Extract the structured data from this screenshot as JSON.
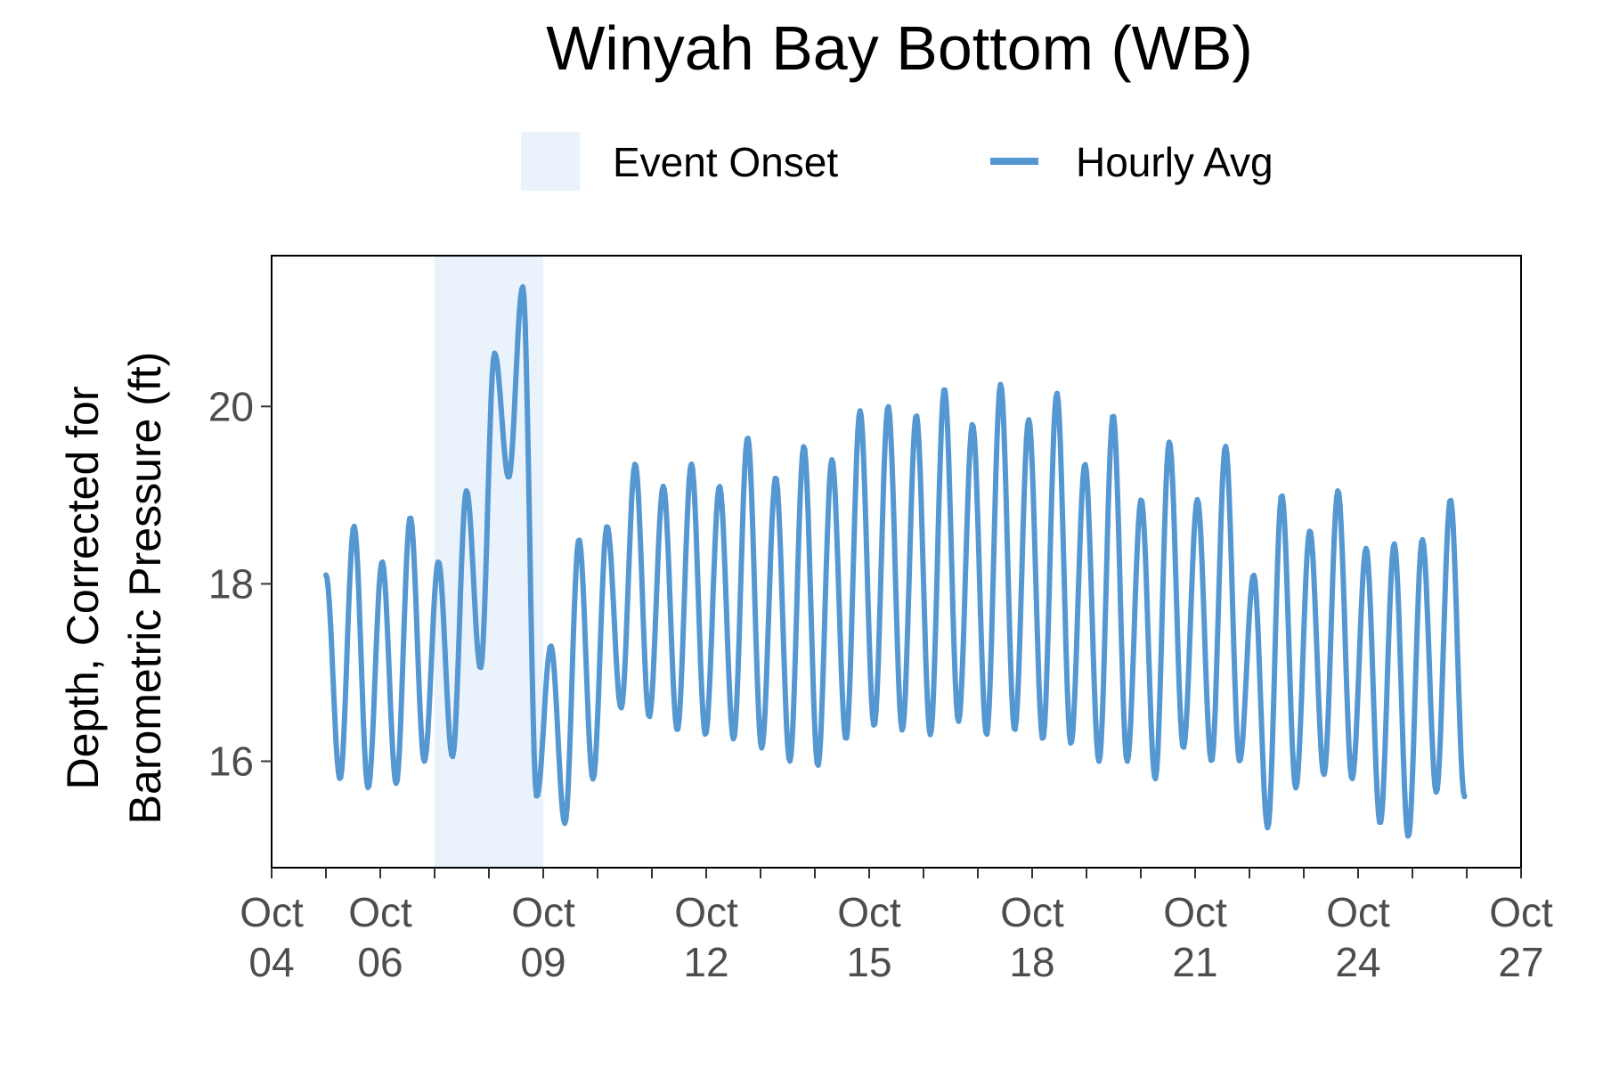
{
  "chart_data": {
    "type": "line",
    "title": "Winyah Bay Bottom (WB)",
    "ylabel": [
      "Depth, Corrected for",
      "Barometric Pressure (ft)"
    ],
    "xlabel": "",
    "xlim": [
      "2015-10-04",
      "2015-10-27"
    ],
    "ylim": [
      14.8,
      21.7
    ],
    "y_ticks": [
      16,
      18,
      20
    ],
    "x_ticks": [
      {
        "date": "2015-10-04",
        "label": [
          "Oct",
          "04"
        ]
      },
      {
        "date": "2015-10-06",
        "label": [
          "Oct",
          "06"
        ]
      },
      {
        "date": "2015-10-09",
        "label": [
          "Oct",
          "09"
        ]
      },
      {
        "date": "2015-10-12",
        "label": [
          "Oct",
          "12"
        ]
      },
      {
        "date": "2015-10-15",
        "label": [
          "Oct",
          "15"
        ]
      },
      {
        "date": "2015-10-18",
        "label": [
          "Oct",
          "18"
        ]
      },
      {
        "date": "2015-10-21",
        "label": [
          "Oct",
          "21"
        ]
      },
      {
        "date": "2015-10-24",
        "label": [
          "Oct",
          "24"
        ]
      },
      {
        "date": "2015-10-27",
        "label": [
          "Oct",
          "27"
        ]
      }
    ],
    "legend": {
      "placement": "top",
      "items": [
        {
          "label": "Event Onset",
          "kind": "band",
          "color": "#eaf2fb"
        },
        {
          "label": "Hourly Avg",
          "kind": "line",
          "color": "#5497d1"
        }
      ]
    },
    "event_band": {
      "name": "Event Onset",
      "start": "2015-10-07 00:00",
      "end": "2015-10-09 00:00",
      "color": "#eaf2fb"
    },
    "series": [
      {
        "name": "Hourly Avg",
        "color": "#5497d1",
        "start": "2015-10-05 00:00",
        "end": "2015-10-25 23:00",
        "tidal_period_hours": 12.42,
        "extrema": [
          18.1,
          15.8,
          18.65,
          15.7,
          18.25,
          15.75,
          18.75,
          16.0,
          18.25,
          16.05,
          19.05,
          17.05,
          20.6,
          19.2,
          21.35,
          15.6,
          17.3,
          15.3,
          18.5,
          15.8,
          18.65,
          16.6,
          19.35,
          16.5,
          19.1,
          16.35,
          19.35,
          16.3,
          19.1,
          16.25,
          19.65,
          16.15,
          19.2,
          16.0,
          19.55,
          15.95,
          19.4,
          16.25,
          19.95,
          16.4,
          20.0,
          16.35,
          19.9,
          16.3,
          20.2,
          16.45,
          19.8,
          16.3,
          20.25,
          16.35,
          19.85,
          16.25,
          20.15,
          16.2,
          19.35,
          16.0,
          19.9,
          16.0,
          18.95,
          15.8,
          19.6,
          16.15,
          18.95,
          16.0,
          19.55,
          16.0,
          18.1,
          15.25,
          19.0,
          15.7,
          18.6,
          15.85,
          19.05,
          15.8,
          18.4,
          15.3,
          18.45,
          15.15,
          18.5,
          15.65,
          18.95,
          15.6
        ]
      }
    ]
  }
}
